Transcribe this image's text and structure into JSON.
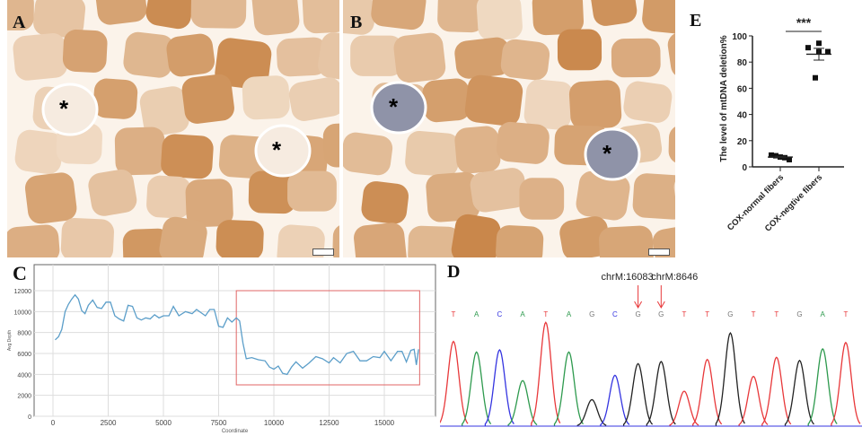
{
  "panels": {
    "A": {
      "label": "A",
      "marker": "*"
    },
    "B": {
      "label": "B",
      "marker": "*"
    },
    "C": {
      "label": "C"
    },
    "D": {
      "label": "D"
    },
    "E": {
      "label": "E"
    }
  },
  "micrograph_colors": {
    "fiber_dark": "#c9874a",
    "fiber_light": "#f1dcc6",
    "border": "#fbf3ea",
    "cox_negative_B": "#8f93a8"
  },
  "chart_data": [
    {
      "panel": "C",
      "type": "line",
      "title": "",
      "xlabel": "Coordinate",
      "ylabel": "Avg Depth",
      "xlim": [
        -700,
        17500
      ],
      "ylim": [
        0,
        13200
      ],
      "xticks": [
        "0",
        "2500",
        "5000",
        "7500",
        "10000",
        "12500",
        "15000"
      ],
      "yticks": [
        "0",
        "2000",
        "4000",
        "6000",
        "8000",
        "10000",
        "12000"
      ],
      "grid": true,
      "line_color": "#5b9ec9",
      "x": [
        100,
        250,
        400,
        550,
        700,
        850,
        1000,
        1150,
        1300,
        1450,
        1600,
        1800,
        2000,
        2200,
        2400,
        2600,
        2800,
        3000,
        3200,
        3400,
        3600,
        3800,
        4000,
        4200,
        4400,
        4600,
        4800,
        5000,
        5250,
        5450,
        5700,
        6000,
        6300,
        6500,
        6700,
        6900,
        7100,
        7300,
        7500,
        7700,
        7900,
        8100,
        8300,
        8450,
        8600,
        8750,
        9000,
        9300,
        9600,
        9800,
        10000,
        10200,
        10400,
        10600,
        10800,
        11000,
        11300,
        11600,
        11900,
        12200,
        12500,
        12700,
        13000,
        13300,
        13600,
        13900,
        14200,
        14500,
        14800,
        15000,
        15300,
        15600,
        15800,
        16000,
        16200,
        16350,
        16450,
        16550
      ],
      "y": [
        7300,
        7600,
        8300,
        10000,
        10700,
        11200,
        11600,
        11200,
        10100,
        9800,
        10600,
        11100,
        10400,
        10300,
        10900,
        10900,
        9600,
        9300,
        9100,
        10600,
        10500,
        9400,
        9200,
        9400,
        9300,
        9700,
        9400,
        9600,
        9600,
        10500,
        9600,
        10000,
        9800,
        10200,
        9900,
        9600,
        10200,
        10200,
        8600,
        8500,
        9400,
        9000,
        9400,
        9100,
        7000,
        5500,
        5600,
        5400,
        5300,
        4700,
        4500,
        4800,
        4100,
        4000,
        4700,
        5200,
        4600,
        5100,
        5700,
        5500,
        5100,
        5600,
        5100,
        6000,
        6200,
        5300,
        5300,
        5700,
        5600,
        6200,
        5300,
        6200,
        6200,
        5200,
        6300,
        6400,
        4900,
        6400
      ],
      "highlight_box": {
        "x_range": [
          8300,
          16600
        ],
        "y_range": [
          3000,
          12000
        ],
        "color": "#e06666"
      }
    },
    {
      "panel": "D",
      "type": "line",
      "title": "",
      "sequence": [
        "T",
        "A",
        "C",
        "A",
        "T",
        "A",
        "G",
        "C",
        "G",
        "G",
        "T",
        "T",
        "G",
        "T",
        "T",
        "G",
        "A",
        "T"
      ],
      "base_colors": {
        "T": "#e8383a",
        "A": "#2e9a4e",
        "C": "#3434e0",
        "G": "#222222"
      },
      "base_label_colors": {
        "T": "#e8383a",
        "A": "#2e9a4e",
        "C": "#3434e0",
        "G": "#777777"
      },
      "peak_colors": [
        "T",
        "A",
        "C",
        "A",
        "T",
        "A",
        "G",
        "C",
        "G",
        "G",
        "T",
        "T",
        "G",
        "T",
        "T",
        "G",
        "A",
        "T"
      ],
      "peak_relative_heights": [
        0.8,
        0.7,
        0.72,
        0.43,
        0.98,
        0.7,
        0.25,
        0.48,
        0.59,
        0.61,
        0.33,
        0.63,
        0.88,
        0.47,
        0.65,
        0.62,
        0.73,
        0.79
      ],
      "annotations": [
        {
          "text": "chrM:16083",
          "base_index": 8,
          "arrow_color": "#e8383a"
        },
        {
          "text": "chrM:8646",
          "base_index": 9,
          "arrow_color": "#e8383a"
        }
      ]
    },
    {
      "panel": "E",
      "type": "scatter",
      "title": "",
      "ylabel": "The level of mtDNA deletion%",
      "ylim": [
        0,
        100
      ],
      "yticks": [
        "0",
        "20",
        "40",
        "60",
        "80",
        "100"
      ],
      "categories": [
        "COX-normal fibers",
        "COX-negtive fibers"
      ],
      "series": [
        {
          "category": "COX-normal fibers",
          "values": [
            9,
            8.5,
            7.5,
            7,
            5.5
          ],
          "mean": 7.5,
          "sem": 0.6
        },
        {
          "category": "COX-negtive fibers",
          "values": [
            91,
            93,
            90,
            88,
            68
          ],
          "mean": 86,
          "sem": 4.5
        }
      ],
      "significance": "***"
    }
  ]
}
